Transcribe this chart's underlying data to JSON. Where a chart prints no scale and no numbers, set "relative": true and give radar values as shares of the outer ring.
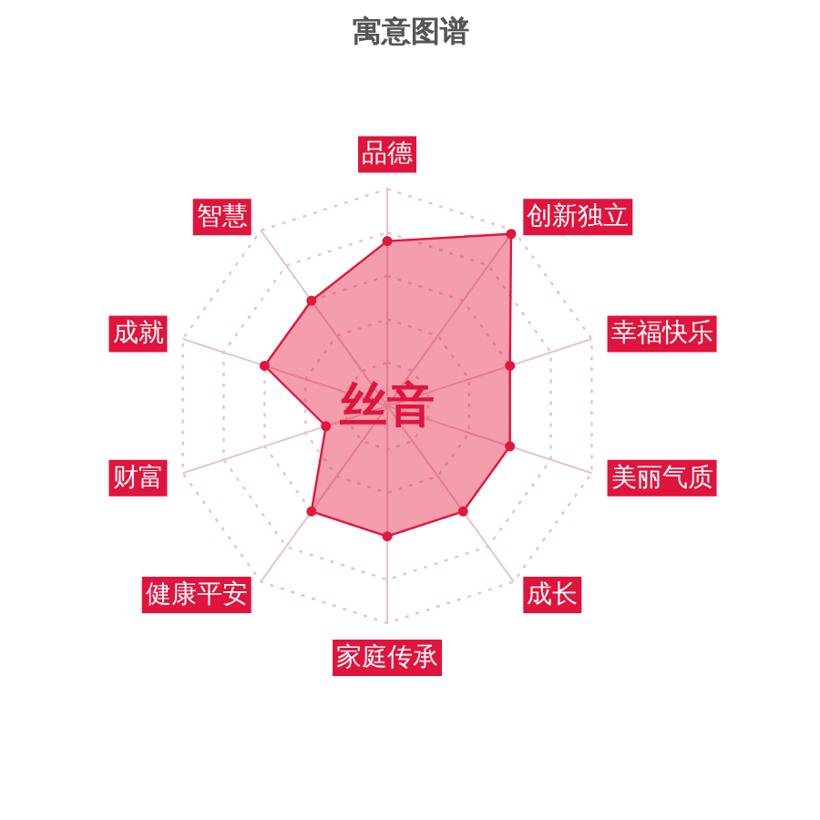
{
  "chart_data": {
    "type": "radar",
    "title": "寓意图谱",
    "categories": [
      "品德",
      "创新独立",
      "幸福快乐",
      "美丽气质",
      "成长",
      "家庭传承",
      "健康平安",
      "财富",
      "成就",
      "智慧"
    ],
    "relative": true,
    "series": [
      {
        "color": "#e3163c",
        "values": [
          0.76,
          0.98,
          0.6,
          0.6,
          0.6,
          0.6,
          0.6,
          0.3,
          0.6,
          0.6
        ]
      }
    ],
    "annotations": [
      "丝音"
    ],
    "grid": true,
    "marker": "circle"
  }
}
